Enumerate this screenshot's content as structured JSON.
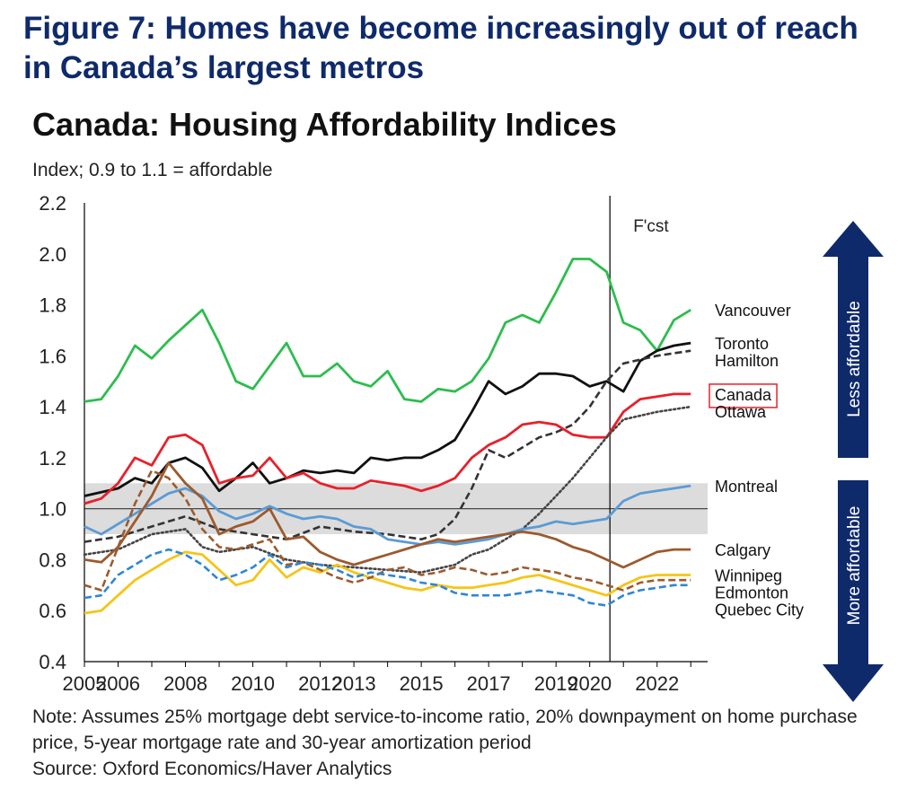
{
  "figure_title": "Figure 7: Homes have become increasingly out of reach in Canada’s largest metros",
  "note": "Note: Assumes 25% mortgage debt service-to-income ratio, 20% downpayment on home purchase price, 5-year mortgage rate and 30-year amortization period",
  "source": "Source: Oxford Economics/Haver Analytics",
  "colors": {
    "title": "#0f2a6b",
    "arrow": "#0f2a6b",
    "band": "#dcdcdc"
  },
  "chart_data": {
    "type": "line",
    "title": "Canada: Housing Affordability Indices",
    "subtitle": "Index; 0.9 to 1.1 = affordable",
    "xlabel": "",
    "ylabel": "",
    "xlim": [
      2005,
      2023.5
    ],
    "ylim": [
      0.4,
      2.2
    ],
    "y_ticks": [
      0.4,
      0.6,
      0.8,
      1.0,
      1.2,
      1.4,
      1.6,
      1.8,
      2.0,
      2.2
    ],
    "y_tick_labels": [
      "0.4",
      "0.6",
      "0.8",
      "1.0",
      "1.2",
      "1.4",
      "1.6",
      "1.8",
      "2.0",
      "2.2"
    ],
    "x_ticks": [
      2005,
      2006,
      2008,
      2010,
      2012,
      2013,
      2015,
      2017,
      2019,
      2020,
      2022
    ],
    "x_tick_labels": [
      "2005",
      "2006",
      "2008",
      "2010",
      "2012",
      "2013",
      "2015",
      "2017",
      "2019",
      "2020",
      "2022"
    ],
    "affordable_band": [
      0.9,
      1.1
    ],
    "reference_line": 1.0,
    "forecast_start": 2020.6,
    "forecast_label": "F'cst",
    "arrow_up_label": "Less affordable",
    "arrow_down_label": "More affordable",
    "grid": false,
    "legend": "line-end labels",
    "series": [
      {
        "name": "Vancouver",
        "color": "#2dbd4e",
        "style": "solid",
        "x": [
          2005,
          2005.5,
          2006,
          2006.5,
          2007,
          2007.5,
          2008,
          2008.5,
          2009,
          2009.5,
          2010,
          2010.5,
          2011,
          2011.5,
          2012,
          2012.5,
          2013,
          2013.5,
          2014,
          2014.5,
          2015,
          2015.5,
          2016,
          2016.5,
          2017,
          2017.5,
          2018,
          2018.5,
          2019,
          2019.5,
          2020,
          2020.5,
          2021,
          2021.5,
          2022,
          2022.5,
          2023
        ],
        "y": [
          1.42,
          1.43,
          1.52,
          1.64,
          1.59,
          1.66,
          1.72,
          1.78,
          1.65,
          1.5,
          1.47,
          1.56,
          1.65,
          1.52,
          1.52,
          1.57,
          1.5,
          1.48,
          1.54,
          1.43,
          1.42,
          1.47,
          1.46,
          1.5,
          1.59,
          1.73,
          1.76,
          1.73,
          1.85,
          1.98,
          1.98,
          1.93,
          1.73,
          1.7,
          1.62,
          1.74,
          1.78
        ]
      },
      {
        "name": "Toronto",
        "color": "#111111",
        "style": "solid",
        "x": [
          2005,
          2006,
          2006.5,
          2007,
          2007.5,
          2008,
          2008.5,
          2009,
          2009.5,
          2010,
          2010.5,
          2011,
          2011.5,
          2012,
          2012.5,
          2013,
          2013.5,
          2014,
          2014.5,
          2015,
          2015.5,
          2016,
          2016.5,
          2017,
          2017.5,
          2018,
          2018.5,
          2019,
          2019.5,
          2020,
          2020.5,
          2021,
          2021.5,
          2022,
          2022.5,
          2023
        ],
        "y": [
          1.05,
          1.08,
          1.12,
          1.1,
          1.18,
          1.2,
          1.16,
          1.07,
          1.12,
          1.18,
          1.1,
          1.12,
          1.15,
          1.14,
          1.15,
          1.14,
          1.2,
          1.19,
          1.2,
          1.2,
          1.23,
          1.27,
          1.38,
          1.5,
          1.45,
          1.48,
          1.53,
          1.53,
          1.52,
          1.48,
          1.5,
          1.46,
          1.58,
          1.62,
          1.64,
          1.65
        ]
      },
      {
        "name": "Hamilton",
        "color": "#333333",
        "style": "dashed",
        "x": [
          2005,
          2006,
          2007,
          2008,
          2009,
          2010,
          2011,
          2012,
          2013,
          2014,
          2015,
          2015.5,
          2016,
          2016.5,
          2017,
          2017.5,
          2018,
          2018.5,
          2019,
          2019.5,
          2020,
          2020.5,
          2021,
          2022,
          2023
        ],
        "y": [
          0.87,
          0.89,
          0.93,
          0.97,
          0.92,
          0.9,
          0.88,
          0.93,
          0.91,
          0.9,
          0.88,
          0.9,
          0.96,
          1.08,
          1.23,
          1.2,
          1.24,
          1.28,
          1.3,
          1.33,
          1.4,
          1.5,
          1.57,
          1.6,
          1.62
        ]
      },
      {
        "name": "Canada",
        "color": "#e8202a",
        "style": "solid",
        "boxed": true,
        "x": [
          2005,
          2005.5,
          2006,
          2006.5,
          2007,
          2007.5,
          2008,
          2008.5,
          2009,
          2009.5,
          2010,
          2010.5,
          2011,
          2011.5,
          2012,
          2012.5,
          2013,
          2013.5,
          2014,
          2014.5,
          2015,
          2015.5,
          2016,
          2016.5,
          2017,
          2017.5,
          2018,
          2018.5,
          2019,
          2019.5,
          2020,
          2020.5,
          2021,
          2021.5,
          2022,
          2022.5,
          2023
        ],
        "y": [
          1.02,
          1.04,
          1.1,
          1.2,
          1.17,
          1.28,
          1.29,
          1.25,
          1.1,
          1.12,
          1.13,
          1.2,
          1.12,
          1.14,
          1.1,
          1.08,
          1.08,
          1.11,
          1.1,
          1.09,
          1.07,
          1.09,
          1.12,
          1.2,
          1.25,
          1.28,
          1.33,
          1.34,
          1.33,
          1.29,
          1.28,
          1.28,
          1.38,
          1.43,
          1.44,
          1.45,
          1.45
        ]
      },
      {
        "name": "Ottawa",
        "color": "#444444",
        "style": "dotted",
        "x": [
          2005,
          2006,
          2007,
          2008,
          2008.5,
          2009,
          2010,
          2011,
          2012,
          2013,
          2014,
          2015,
          2016,
          2016.5,
          2017,
          2017.5,
          2018,
          2018.5,
          2019,
          2019.5,
          2020,
          2020.5,
          2021,
          2022,
          2023
        ],
        "y": [
          0.82,
          0.84,
          0.9,
          0.92,
          0.85,
          0.83,
          0.85,
          0.8,
          0.78,
          0.77,
          0.76,
          0.75,
          0.78,
          0.82,
          0.84,
          0.88,
          0.92,
          0.98,
          1.05,
          1.12,
          1.2,
          1.28,
          1.35,
          1.38,
          1.4
        ]
      },
      {
        "name": "Montreal",
        "color": "#5b9bd5",
        "style": "solid",
        "x": [
          2005,
          2005.5,
          2006,
          2006.5,
          2007,
          2007.5,
          2008,
          2008.5,
          2009,
          2009.5,
          2010,
          2010.5,
          2011,
          2011.5,
          2012,
          2012.5,
          2013,
          2013.5,
          2014,
          2014.5,
          2015,
          2015.5,
          2016,
          2016.5,
          2017,
          2017.5,
          2018,
          2018.5,
          2019,
          2019.5,
          2020,
          2020.5,
          2021,
          2021.5,
          2022,
          2022.5,
          2023
        ],
        "y": [
          0.93,
          0.9,
          0.94,
          0.98,
          1.02,
          1.06,
          1.08,
          1.05,
          0.99,
          0.96,
          0.98,
          1.01,
          0.98,
          0.96,
          0.97,
          0.96,
          0.93,
          0.92,
          0.88,
          0.87,
          0.86,
          0.87,
          0.86,
          0.87,
          0.88,
          0.9,
          0.92,
          0.93,
          0.95,
          0.94,
          0.95,
          0.96,
          1.03,
          1.06,
          1.07,
          1.08,
          1.09
        ]
      },
      {
        "name": "Calgary",
        "color": "#9c5a2e",
        "style": "solid",
        "x": [
          2005,
          2005.5,
          2006,
          2006.5,
          2007,
          2007.5,
          2008,
          2008.5,
          2009,
          2009.5,
          2010,
          2010.5,
          2011,
          2011.5,
          2012,
          2012.5,
          2013,
          2013.5,
          2014,
          2014.5,
          2015,
          2015.5,
          2016,
          2016.5,
          2017,
          2017.5,
          2018,
          2018.5,
          2019,
          2019.5,
          2020,
          2020.5,
          2021,
          2021.5,
          2022,
          2022.5,
          2023
        ],
        "y": [
          0.8,
          0.79,
          0.85,
          0.95,
          1.05,
          1.18,
          1.1,
          1.04,
          0.9,
          0.93,
          0.95,
          1.0,
          0.88,
          0.89,
          0.83,
          0.8,
          0.78,
          0.8,
          0.82,
          0.84,
          0.86,
          0.88,
          0.87,
          0.88,
          0.89,
          0.9,
          0.91,
          0.9,
          0.88,
          0.85,
          0.83,
          0.8,
          0.77,
          0.8,
          0.83,
          0.84,
          0.84
        ]
      },
      {
        "name": "Winnipeg",
        "color": "#f5c518",
        "style": "solid",
        "x": [
          2005,
          2005.5,
          2006,
          2006.5,
          2007,
          2007.5,
          2008,
          2008.5,
          2009,
          2009.5,
          2010,
          2010.5,
          2011,
          2011.5,
          2012,
          2012.5,
          2013,
          2013.5,
          2014,
          2014.5,
          2015,
          2015.5,
          2016,
          2016.5,
          2017,
          2017.5,
          2018,
          2018.5,
          2019,
          2019.5,
          2020,
          2020.5,
          2021,
          2021.5,
          2022,
          2022.5,
          2023
        ],
        "y": [
          0.59,
          0.6,
          0.66,
          0.72,
          0.76,
          0.8,
          0.83,
          0.82,
          0.76,
          0.7,
          0.72,
          0.8,
          0.73,
          0.77,
          0.75,
          0.78,
          0.75,
          0.73,
          0.71,
          0.69,
          0.68,
          0.7,
          0.69,
          0.69,
          0.7,
          0.71,
          0.73,
          0.74,
          0.72,
          0.7,
          0.68,
          0.66,
          0.7,
          0.73,
          0.74,
          0.74,
          0.74
        ]
      },
      {
        "name": "Edmonton",
        "color": "#9c5a2e",
        "style": "dashed",
        "x": [
          2005,
          2005.5,
          2006,
          2006.5,
          2007,
          2007.5,
          2008,
          2008.5,
          2009,
          2009.5,
          2010,
          2010.5,
          2011,
          2011.5,
          2012,
          2012.5,
          2013,
          2013.5,
          2014,
          2014.5,
          2015,
          2015.5,
          2016,
          2016.5,
          2017,
          2017.5,
          2018,
          2018.5,
          2019,
          2019.5,
          2020,
          2020.5,
          2021,
          2021.5,
          2022,
          2022.5,
          2023
        ],
        "y": [
          0.7,
          0.68,
          0.85,
          1.02,
          1.15,
          1.12,
          1.04,
          0.92,
          0.85,
          0.84,
          0.86,
          0.88,
          0.78,
          0.79,
          0.76,
          0.73,
          0.71,
          0.73,
          0.76,
          0.77,
          0.74,
          0.75,
          0.77,
          0.76,
          0.74,
          0.75,
          0.77,
          0.76,
          0.75,
          0.73,
          0.72,
          0.7,
          0.68,
          0.71,
          0.72,
          0.72,
          0.72
        ]
      },
      {
        "name": "Quebec City",
        "color": "#2e86d4",
        "style": "dashed",
        "x": [
          2005,
          2005.5,
          2006,
          2006.5,
          2007,
          2007.5,
          2008,
          2008.5,
          2009,
          2009.5,
          2010,
          2010.5,
          2011,
          2011.5,
          2012,
          2012.5,
          2013,
          2013.5,
          2014,
          2014.5,
          2015,
          2015.5,
          2016,
          2016.5,
          2017,
          2017.5,
          2018,
          2018.5,
          2019,
          2019.5,
          2020,
          2020.5,
          2021,
          2021.5,
          2022,
          2022.5,
          2023
        ],
        "y": [
          0.65,
          0.66,
          0.74,
          0.78,
          0.82,
          0.84,
          0.82,
          0.78,
          0.72,
          0.74,
          0.77,
          0.82,
          0.77,
          0.79,
          0.78,
          0.76,
          0.73,
          0.75,
          0.74,
          0.73,
          0.71,
          0.7,
          0.67,
          0.66,
          0.66,
          0.66,
          0.67,
          0.68,
          0.67,
          0.66,
          0.63,
          0.62,
          0.66,
          0.68,
          0.69,
          0.7,
          0.7
        ]
      }
    ]
  }
}
